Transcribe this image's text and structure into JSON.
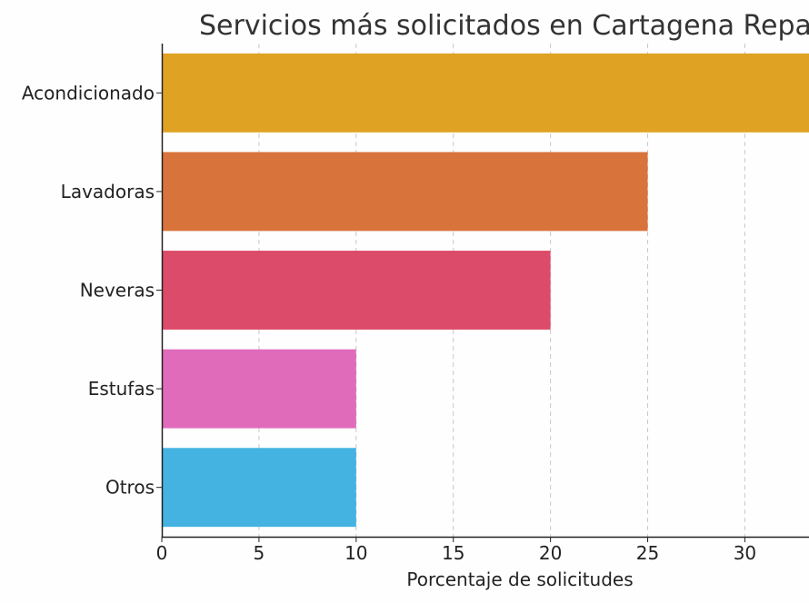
{
  "chart_data": {
    "type": "bar",
    "orientation": "horizontal",
    "title": "Servicios más solicitados en Cartagena Repa",
    "xlabel": "Porcentaje de solicitudes",
    "ylabel": "",
    "categories": [
      "Acondicionado",
      "Lavadoras",
      "Neveras",
      "Estufas",
      "Otros"
    ],
    "values": [
      35,
      25,
      20,
      10,
      10
    ],
    "colors": [
      "#DFA223",
      "#D9733C",
      "#DC4B69",
      "#E06BBB",
      "#44B3E2"
    ],
    "xlim": [
      0,
      33.3
    ],
    "xticks": [
      0,
      5,
      10,
      15,
      20,
      25,
      30
    ],
    "grid": "x",
    "legend": "none"
  }
}
